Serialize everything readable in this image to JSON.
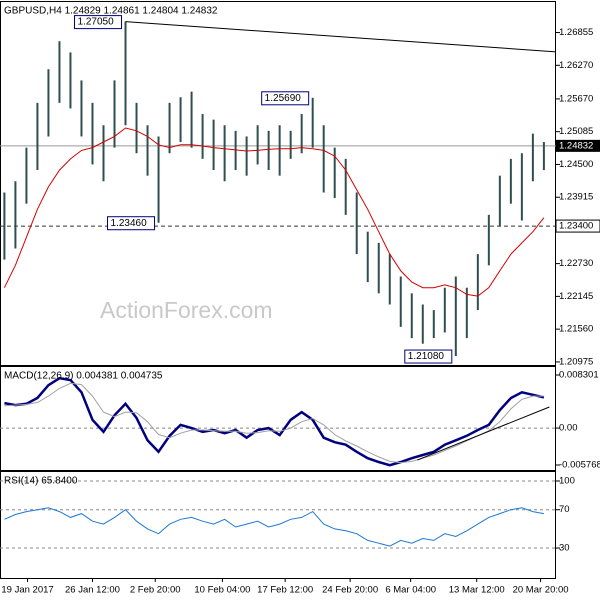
{
  "chart_data": [
    {
      "type": "hlbar",
      "title": "GBPUSD,H4  1.24829 1.24861 1.24804 1.24832",
      "watermark": "ActionForex.com",
      "color": "#2f4f4f",
      "grid": false,
      "xlim": [
        -0.4,
        50.1
      ],
      "ylim": [
        1.2092,
        1.274
      ],
      "yticks": [
        1.26855,
        {
          "value": 1.2627,
          "label": "1.26270"
        },
        {
          "value": 1.2567,
          "label": "1.25670"
        },
        1.25085,
        {
          "value": 1.245,
          "label": "1.24500"
        },
        1.23915,
        {
          "value": 1.2273,
          "label": "1.22730"
        },
        1.22145,
        {
          "value": 1.2156,
          "label": "1.21560"
        },
        1.20975
      ],
      "high": [
        1.24,
        1.242,
        1.248,
        1.256,
        1.262,
        1.267,
        1.265,
        1.26,
        1.256,
        1.252,
        1.26,
        1.2705,
        1.256,
        1.252,
        1.25,
        1.256,
        1.257,
        1.258,
        1.254,
        1.253,
        1.252,
        1.251,
        1.25,
        1.252,
        1.251,
        1.252,
        1.251,
        1.254,
        1.2569,
        1.252,
        1.248,
        1.246,
        1.24,
        1.233,
        1.231,
        1.229,
        1.225,
        1.222,
        1.22,
        1.219,
        1.223,
        1.225,
        1.223,
        1.229,
        1.236,
        1.243,
        1.246,
        1.247,
        1.2505,
        1.249
      ],
      "low": [
        1.228,
        1.23,
        1.238,
        1.244,
        1.25,
        1.256,
        1.255,
        1.25,
        1.245,
        1.242,
        1.248,
        1.252,
        1.247,
        1.243,
        1.2346,
        1.247,
        1.249,
        1.248,
        1.246,
        1.244,
        1.242,
        1.244,
        1.243,
        1.245,
        1.244,
        1.243,
        1.246,
        1.247,
        1.248,
        1.24,
        1.239,
        1.236,
        1.229,
        1.224,
        1.222,
        1.22,
        1.216,
        1.214,
        1.213,
        1.214,
        1.215,
        1.2108,
        1.214,
        1.219,
        1.227,
        1.234,
        1.238,
        1.235,
        1.242,
        1.244
      ],
      "overlays": [
        {
          "color": "#d40000",
          "values": [
            1.223,
            1.227,
            1.232,
            1.237,
            1.241,
            1.244,
            1.246,
            1.2475,
            1.248,
            1.249,
            1.25,
            1.2515,
            1.251,
            1.25,
            1.2485,
            1.248,
            1.2485,
            1.2485,
            1.2483,
            1.248,
            1.2478,
            1.2476,
            1.2474,
            1.2475,
            1.2477,
            1.2478,
            1.2478,
            1.248,
            1.2478,
            1.2475,
            1.2465,
            1.244,
            1.2405,
            1.237,
            1.233,
            1.229,
            1.226,
            1.224,
            1.223,
            1.223,
            1.2235,
            1.223,
            1.2218,
            1.2215,
            1.223,
            1.226,
            1.229,
            1.231,
            1.233,
            1.2355
          ]
        }
      ],
      "levels": [
        {
          "value": 1.234,
          "label": "1.23400"
        }
      ],
      "last_price": 1.24832,
      "annotations": [
        {
          "x": 11,
          "value": 1.2705,
          "label": "1.27050"
        },
        {
          "x": 28,
          "value": 1.2569,
          "label": "1.25690"
        },
        {
          "x": 14,
          "value": 1.2346,
          "label": "1.23460"
        },
        {
          "x": 41,
          "value": 1.2108,
          "label": "1.21080"
        }
      ],
      "trendline": {
        "x": [
          11,
          50.1
        ],
        "y": [
          1.2705,
          1.2651
        ]
      }
    },
    {
      "type": "line",
      "title": "MACD(12,26,9) 0.004381 0.004735",
      "grid": false,
      "xlim": [
        -0.4,
        50.1
      ],
      "ylim": [
        -0.00655,
        0.00955
      ],
      "yticks": [
        0.008301,
        {
          "value": 0,
          "label": "0.00"
        },
        -0.005768
      ],
      "series": [
        {
          "color": "#000080",
          "values": [
            0.0039,
            0.0036,
            0.0038,
            0.0047,
            0.0067,
            0.0078,
            0.0075,
            0.0056,
            0.0013,
            -0.0006,
            0.002,
            0.0038,
            0.0016,
            -0.0019,
            -0.0037,
            -0.0012,
            0.0005,
            0,
            -0.0006,
            -0.0003,
            -0.0008,
            -0.0003,
            -0.0015,
            -0.0003,
            0,
            -0.0011,
            0.0013,
            0.0025,
            0.0013,
            -0.0015,
            -0.0022,
            -0.0026,
            -0.0037,
            -0.0047,
            -0.0053,
            -0.0058,
            -0.0053,
            -0.0047,
            -0.0042,
            -0.0037,
            -0.0026,
            -0.0019,
            -0.0012,
            -0.0003,
            0.0005,
            0.0028,
            0.0047,
            0.0056,
            0.0052,
            0.0048
          ]
        },
        {
          "color": "#a0a0a0",
          "values": [
            0.0035,
            0.0036,
            0.0037,
            0.004,
            0.005,
            0.0062,
            0.007,
            0.0068,
            0.005,
            0.0025,
            0.0018,
            0.0025,
            0.0024,
            0.001,
            -0.001,
            -0.0015,
            -0.0008,
            -0.0003,
            -0.0003,
            -0.0004,
            -0.0005,
            -0.0005,
            -0.0008,
            -0.0007,
            -0.0004,
            -0.0005,
            0,
            0.001,
            0.0015,
            0.0005,
            -0.001,
            -0.002,
            -0.0028,
            -0.0037,
            -0.0045,
            -0.0052,
            -0.0054,
            -0.0052,
            -0.0047,
            -0.0042,
            -0.0035,
            -0.0028,
            -0.002,
            -0.0012,
            -0.0004,
            0.001,
            0.003,
            0.0045,
            0.005,
            0.005
          ]
        }
      ],
      "trendline": {
        "x": [
          37.5,
          49.5
        ],
        "y": [
          -0.005,
          0.0033
        ]
      }
    },
    {
      "type": "line",
      "title": "RSI(14) 65.8400",
      "grid": true,
      "xlim": [
        -0.4,
        50.1
      ],
      "ylim": [
        -1.3,
        109.4
      ],
      "yticks": [
        100,
        70,
        30
      ],
      "series": [
        {
          "color": "#1e78d2",
          "values": [
            60,
            65,
            68,
            70,
            72,
            68,
            62,
            66,
            58,
            55,
            62,
            70,
            58,
            50,
            45,
            55,
            60,
            62,
            58,
            55,
            60,
            52,
            55,
            58,
            52,
            55,
            60,
            62,
            68,
            55,
            50,
            48,
            45,
            38,
            35,
            32,
            38,
            35,
            40,
            38,
            45,
            42,
            48,
            55,
            62,
            66,
            70,
            72,
            68,
            66
          ]
        }
      ],
      "xticks": [
        {
          "value": 2.1,
          "label": "19 Jan 2017"
        },
        {
          "value": 8,
          "label": "26 Jan 12:00"
        },
        {
          "value": 13.7,
          "label": "2 Feb 20:00"
        },
        {
          "value": 19.8,
          "label": "10 Feb 04:00"
        },
        {
          "value": 25.5,
          "label": "17 Feb 12:00"
        },
        {
          "value": 31.4,
          "label": "24 Feb 20:00"
        },
        {
          "value": 36.9,
          "label": "6 Mar 04:00"
        },
        {
          "value": 42.9,
          "label": "13 Mar 12:00"
        },
        {
          "value": 48.7,
          "label": "20 Mar 20:00"
        }
      ]
    }
  ]
}
